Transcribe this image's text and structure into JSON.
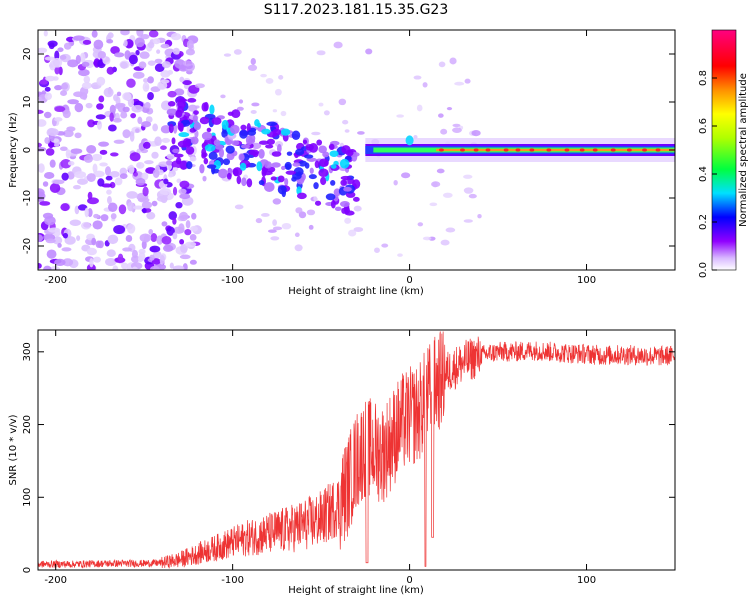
{
  "title": "S117.2023.181.15.35.G23",
  "chart_data": [
    {
      "type": "heatmap",
      "name": "spectrogram",
      "xlabel": "Height of straight line (km)",
      "ylabel": "Frequency (Hz)",
      "xlim": [
        -210,
        150
      ],
      "ylim": [
        -25,
        25
      ],
      "xticks": [
        -200,
        -100,
        0,
        100
      ],
      "yticks": [
        -20,
        -10,
        0,
        10,
        20
      ],
      "grid": false,
      "colorbar": {
        "label": "Normalized spectral amplitude",
        "range": [
          0.0,
          1.0
        ],
        "ticks": [
          0.0,
          0.2,
          0.4,
          0.6,
          0.8
        ],
        "colormap": [
          "#ffffff",
          "#c080ff",
          "#8000ff",
          "#0000ff",
          "#00ffff",
          "#00ff00",
          "#ffff00",
          "#ff8000",
          "#ff0000",
          "#ff0080"
        ]
      },
      "features": [
        {
          "name": "scattered noise",
          "x_range": [
            -210,
            -130
          ],
          "freq_range": [
            -25,
            25
          ],
          "amplitude": 0.15
        },
        {
          "name": "descending trace",
          "x_range": [
            -135,
            -30
          ],
          "freq_start": 5,
          "freq_end": -7,
          "amplitude": 0.35
        },
        {
          "name": "carrier line",
          "x_range": [
            -25,
            150
          ],
          "freq": 0,
          "amplitude": 0.9
        }
      ]
    },
    {
      "type": "line",
      "name": "snr",
      "xlabel": "Height of straight line (km)",
      "ylabel": "SNR (10 * v/v)",
      "xlim": [
        -210,
        150
      ],
      "ylim": [
        0,
        330
      ],
      "xticks": [
        -200,
        -100,
        0,
        100
      ],
      "yticks": [
        0,
        100,
        200,
        300
      ],
      "grid": false,
      "color": "#ee3333",
      "series": [
        {
          "name": "SNR",
          "x": [
            -210,
            -190,
            -170,
            -150,
            -140,
            -130,
            -120,
            -110,
            -100,
            -90,
            -80,
            -70,
            -60,
            -50,
            -40,
            -35,
            -30,
            -25,
            -20,
            -15,
            -10,
            -5,
            0,
            5,
            10,
            15,
            20,
            30,
            40,
            50,
            60,
            70,
            80,
            90,
            100,
            110,
            120,
            130,
            140,
            150
          ],
          "y": [
            8,
            8,
            9,
            9,
            10,
            14,
            22,
            30,
            38,
            45,
            50,
            55,
            62,
            70,
            90,
            115,
            150,
            170,
            165,
            160,
            180,
            200,
            210,
            215,
            240,
            255,
            270,
            285,
            295,
            300,
            300,
            302,
            300,
            298,
            297,
            295,
            296,
            295,
            294,
            295
          ]
        }
      ],
      "dips": [
        {
          "x": -24,
          "y": 10
        },
        {
          "x": 9,
          "y": 5
        },
        {
          "x": 13,
          "y": 45
        }
      ]
    }
  ]
}
